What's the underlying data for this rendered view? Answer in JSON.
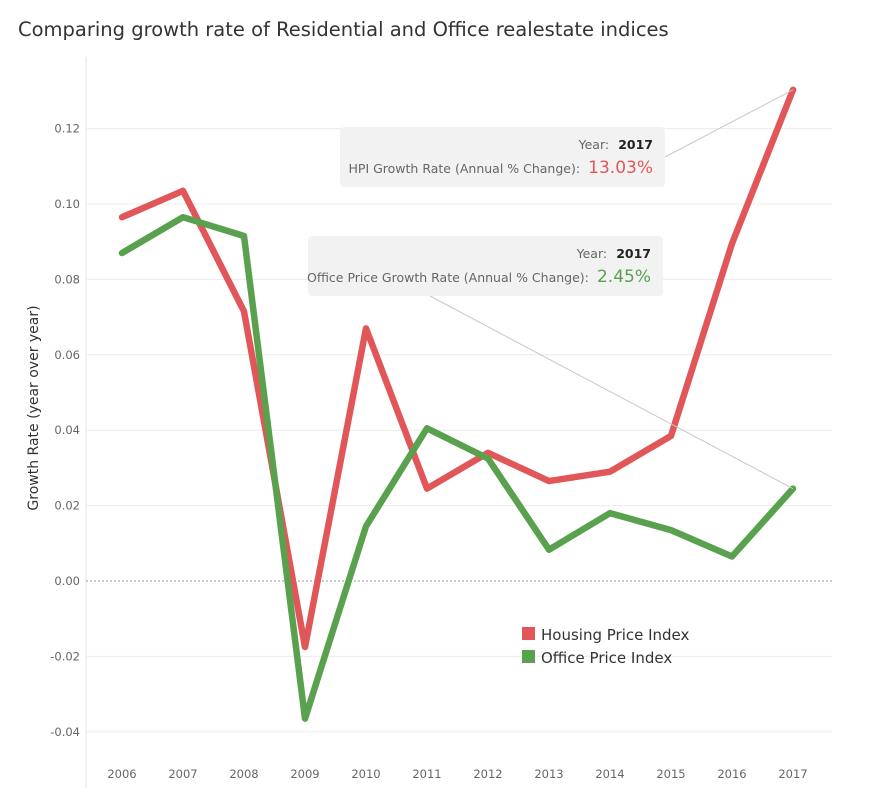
{
  "title": "Comparing growth rate of Residential and Office realestate indices",
  "colors": {
    "housing": "#e15759",
    "office": "#59a14f"
  },
  "chart_data": {
    "type": "line",
    "title": "Comparing growth rate of Residential and Office realestate indices",
    "xlabel": "",
    "ylabel": "Growth Rate (year over year)",
    "x": [
      2006,
      2007,
      2008,
      2009,
      2010,
      2011,
      2012,
      2013,
      2014,
      2015,
      2016,
      2017
    ],
    "ylim": [
      -0.045,
      0.133
    ],
    "yticks": [
      "0.12",
      "0.10",
      "0.08",
      "0.06",
      "0.04",
      "0.02",
      "0.00",
      "-0.02",
      "-0.04"
    ],
    "grid": true,
    "legend": "bottom-right",
    "series": [
      {
        "name": "Housing Price Index",
        "color": "#e15759",
        "values": [
          0.0965,
          0.1035,
          0.0715,
          -0.0175,
          0.067,
          0.0245,
          0.034,
          0.0265,
          0.029,
          0.0385,
          0.0895,
          0.1303
        ]
      },
      {
        "name": "Office Price Index",
        "color": "#59a14f",
        "values": [
          0.087,
          0.0965,
          0.0915,
          -0.0365,
          0.0145,
          0.0405,
          0.0325,
          0.0083,
          0.018,
          0.0135,
          0.0065,
          0.0245
        ]
      }
    ],
    "annotations": [
      {
        "series": 0,
        "year_label": "Year:",
        "year": "2017",
        "measure": "HPI Growth Rate (Annual % Change):",
        "value": "13.03%"
      },
      {
        "series": 1,
        "year_label": "Year:",
        "year": "2017",
        "measure": "Office Price Growth Rate (Annual % Change):",
        "value": "2.45%"
      }
    ]
  }
}
